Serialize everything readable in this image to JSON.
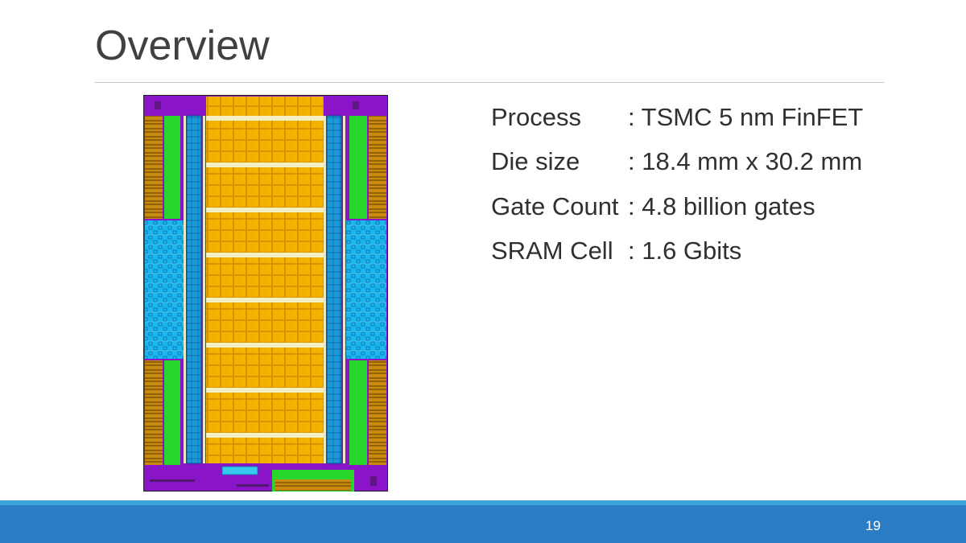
{
  "slide": {
    "title": "Overview",
    "page_number": "19"
  },
  "specs": [
    {
      "label": "Process",
      "value": ": TSMC 5 nm FinFET"
    },
    {
      "label": "Die size",
      "value": ": 18.4 mm x 30.2 mm"
    },
    {
      "label": "Gate Count",
      "value": ": 4.8 billion gates"
    },
    {
      "label": "SRAM Cell",
      "value": ": 1.6 Gbits"
    }
  ],
  "die_image": {
    "description_colors": {
      "border": "#8a14c8",
      "core_blocks": "#f2b400",
      "memory": "#19b6f0",
      "io": "#28d62c",
      "column": "#1e9bd8"
    }
  },
  "theme": {
    "accent_dark": "#2a7dc2",
    "accent_light": "#3aa3dc"
  }
}
